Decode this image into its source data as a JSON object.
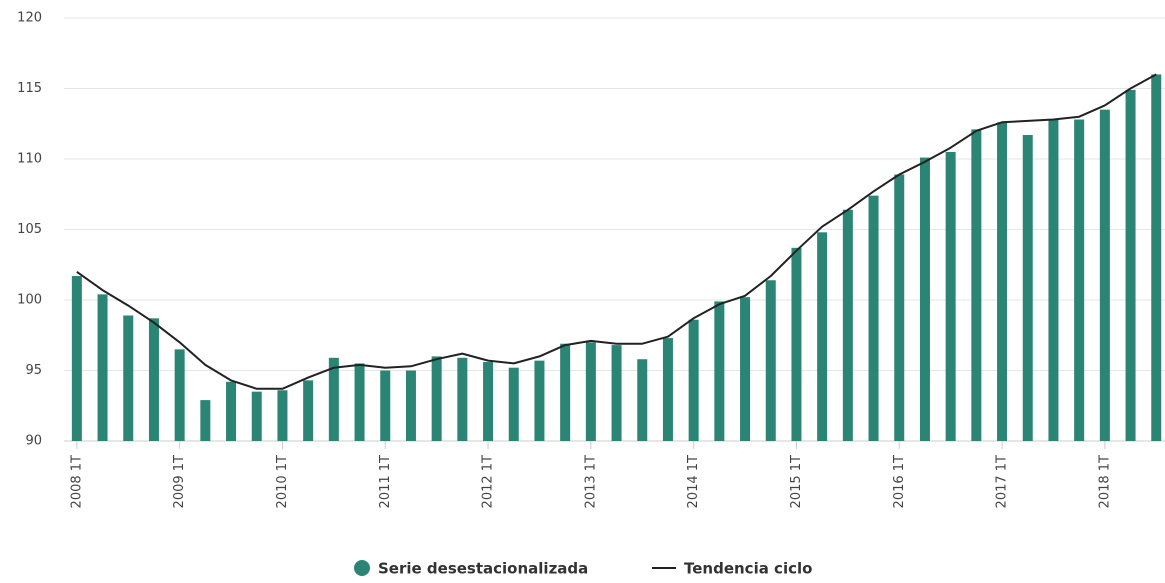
{
  "chart_data": {
    "type": "bar",
    "categories": [
      "2008 1T",
      null,
      null,
      null,
      "2009 1T",
      null,
      null,
      null,
      "2010 1T",
      null,
      null,
      null,
      "2011 1T",
      null,
      null,
      null,
      "2012 1T",
      null,
      null,
      null,
      "2013 1T",
      null,
      null,
      null,
      "2014 1T",
      null,
      null,
      null,
      "2015 1T",
      null,
      null,
      null,
      "2016 1T",
      null,
      null,
      null,
      "2017 1T",
      null,
      null,
      null,
      "2018 1T",
      null,
      null
    ],
    "series": [
      {
        "name": "Serie desestacionalizada",
        "type": "bar",
        "color": "#2a8574",
        "values": [
          101.7,
          100.4,
          98.9,
          98.7,
          96.5,
          92.9,
          94.2,
          93.5,
          93.6,
          94.3,
          95.9,
          95.5,
          95.0,
          95.0,
          96.0,
          95.9,
          95.6,
          95.2,
          95.7,
          96.9,
          97.0,
          96.8,
          95.8,
          97.3,
          98.6,
          99.9,
          100.2,
          101.4,
          103.7,
          104.8,
          106.4,
          107.4,
          108.9,
          110.1,
          110.5,
          112.1,
          112.6,
          111.7,
          112.8,
          112.8,
          113.5,
          114.9,
          116.0
        ]
      },
      {
        "name": "Tendencia ciclo",
        "type": "line",
        "color": "#222222",
        "values": [
          102.0,
          100.7,
          99.6,
          98.4,
          97.0,
          95.4,
          94.3,
          93.7,
          93.7,
          94.5,
          95.2,
          95.4,
          95.2,
          95.3,
          95.8,
          96.2,
          95.7,
          95.5,
          96.0,
          96.8,
          97.1,
          96.9,
          96.9,
          97.4,
          98.7,
          99.7,
          100.3,
          101.7,
          103.5,
          105.2,
          106.4,
          107.7,
          108.9,
          109.8,
          110.8,
          112.0,
          112.6,
          112.7,
          112.8,
          113.0,
          113.8,
          115.0,
          116.0
        ]
      }
    ],
    "ylim": [
      90,
      120
    ],
    "yticks": [
      90,
      95,
      100,
      105,
      110,
      115,
      120
    ],
    "grid": true,
    "legend": "bottom"
  }
}
